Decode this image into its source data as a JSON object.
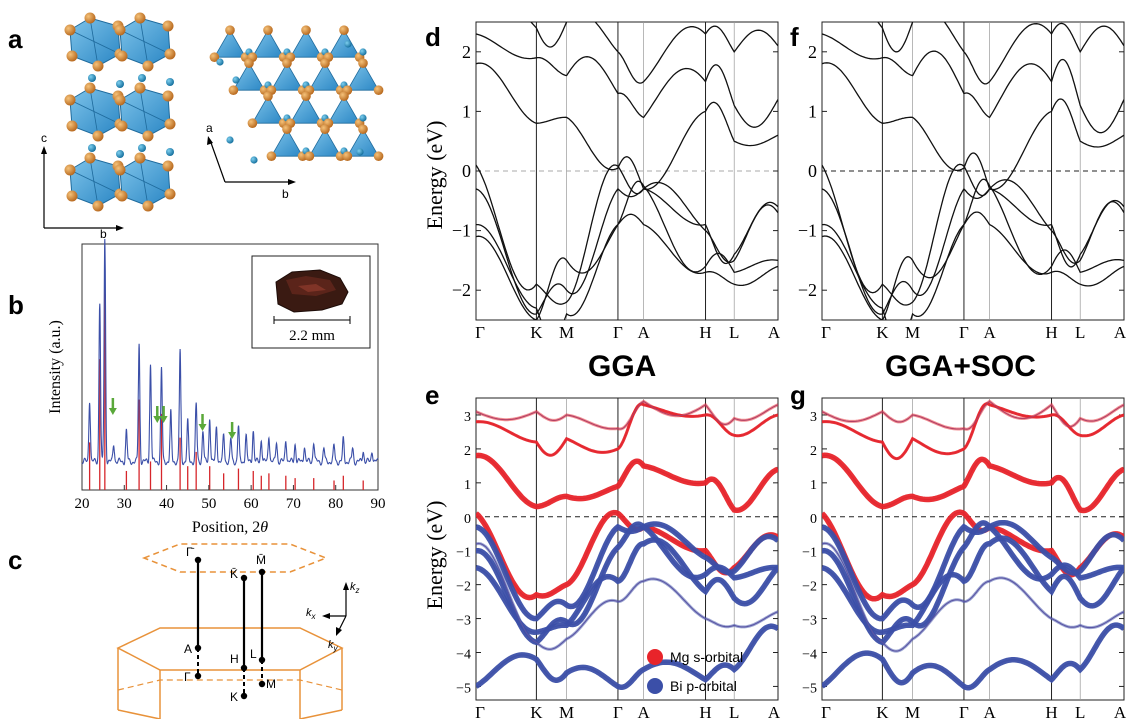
{
  "panels": {
    "a": {
      "letter": "a",
      "axis_c": "c",
      "axis_b": "b",
      "axis_a": "a",
      "axis_b2": "b"
    },
    "b": {
      "letter": "b",
      "ylabel": "Intensity (a.u.)",
      "xlabel": "Position, 2",
      "xlabel_theta": "θ",
      "inset_scale": "2.2 mm",
      "xticks": [
        "20",
        "30",
        "40",
        "50",
        "60",
        "70",
        "80",
        "90"
      ]
    },
    "c": {
      "letter": "c",
      "points": {
        "gamma_bar": "Γ̄",
        "k_bar": "K̄",
        "m_bar": "M̄",
        "A": "A",
        "H": "H",
        "L": "L",
        "Gamma": "Γ",
        "K": "K",
        "M": "M"
      },
      "axes": {
        "kz": "k",
        "kz_sub": "z",
        "kx": "k",
        "kx_sub": "x",
        "ky": "k",
        "ky_sub": "y"
      }
    },
    "d": {
      "letter": "d"
    },
    "e": {
      "letter": "e"
    },
    "f": {
      "letter": "f"
    },
    "g": {
      "letter": "g"
    }
  },
  "column_titles": {
    "left": "GGA",
    "right": "GGA+SOC"
  },
  "band_ylabel": "Energy (eV)",
  "kpath": [
    "Γ",
    "K",
    "M",
    "Γ",
    "A",
    "H",
    "L",
    "A"
  ],
  "legend": [
    {
      "label": "Mg s-orbital",
      "color": "#e8242a"
    },
    {
      "label": "Bi p-orbital",
      "color": "#3b4fa8"
    }
  ],
  "chart_data": [
    {
      "id": "b",
      "type": "line",
      "title": "",
      "xlabel": "Position, 2θ",
      "ylabel": "Intensity (a.u.)",
      "xlim": [
        20,
        90
      ],
      "grid": false,
      "series": [
        {
          "name": "",
          "color": "#3b4fa8",
          "peaks": [
            [
              21.8,
              0.28
            ],
            [
              24.2,
              0.72
            ],
            [
              25.4,
              1.0
            ],
            [
              27.5,
              0.08
            ],
            [
              30.5,
              0.14
            ],
            [
              33.5,
              0.53
            ],
            [
              36.2,
              0.44
            ],
            [
              38.8,
              0.42
            ],
            [
              41.0,
              0.22
            ],
            [
              43.2,
              0.5
            ],
            [
              45.0,
              0.18
            ],
            [
              47.0,
              0.26
            ],
            [
              48.6,
              0.14
            ],
            [
              50.2,
              0.2
            ],
            [
              51.8,
              0.16
            ],
            [
              53.5,
              0.12
            ],
            [
              55.2,
              0.1
            ],
            [
              57.0,
              0.16
            ],
            [
              58.8,
              0.12
            ],
            [
              60.5,
              0.14
            ],
            [
              62.4,
              0.1
            ],
            [
              64.2,
              0.12
            ],
            [
              66.0,
              0.09
            ],
            [
              68.2,
              0.1
            ],
            [
              70.4,
              0.08
            ],
            [
              72.6,
              0.07
            ],
            [
              74.8,
              0.09
            ],
            [
              77.2,
              0.06
            ],
            [
              79.6,
              0.07
            ],
            [
              81.8,
              0.1
            ],
            [
              84.0,
              0.06
            ],
            [
              86.5,
              0.05
            ],
            [
              88.6,
              0.05
            ]
          ]
        },
        {
          "name": "",
          "color": "#d6262b",
          "peaks": [
            [
              21.8,
              0.2
            ],
            [
              24.2,
              0.55
            ],
            [
              25.4,
              0.98
            ],
            [
              30.5,
              0.08
            ],
            [
              33.5,
              0.38
            ],
            [
              36.2,
              0.12
            ],
            [
              38.8,
              0.32
            ],
            [
              43.2,
              0.22
            ],
            [
              45.0,
              0.1
            ],
            [
              47.0,
              0.16
            ],
            [
              50.2,
              0.1
            ],
            [
              53.5,
              0.07
            ],
            [
              57.0,
              0.09
            ],
            [
              60.5,
              0.08
            ],
            [
              62.4,
              0.06
            ],
            [
              64.2,
              0.07
            ],
            [
              68.2,
              0.06
            ],
            [
              70.4,
              0.05
            ],
            [
              74.8,
              0.05
            ],
            [
              79.6,
              0.04
            ],
            [
              81.8,
              0.06
            ],
            [
              86.5,
              0.04
            ]
          ]
        }
      ],
      "annotations": {
        "arrows_at": [
          27.3,
          37.8,
          39.3,
          48.5,
          55.5
        ]
      }
    },
    {
      "id": "d",
      "type": "line",
      "title": "",
      "ylabel": "Energy (eV)",
      "ylim": [
        -2.5,
        2.5
      ],
      "yticks": [
        -2,
        -1,
        0,
        1,
        2
      ],
      "xticks": [
        "Γ",
        "K",
        "M",
        "Γ",
        "A",
        "H",
        "L",
        "A"
      ]
    },
    {
      "id": "f",
      "type": "line",
      "title": "",
      "ylabel": "",
      "ylim": [
        -2.5,
        2.5
      ],
      "yticks": [
        -2,
        -1,
        0,
        1,
        2
      ],
      "xticks": [
        "Γ",
        "K",
        "M",
        "Γ",
        "A",
        "H",
        "L",
        "A"
      ]
    },
    {
      "id": "e",
      "type": "line",
      "title": "GGA",
      "ylabel": "Energy (eV)",
      "ylim": [
        -5.4,
        3.5
      ],
      "yticks": [
        -5,
        -4,
        -3,
        -2,
        -1,
        0,
        1,
        2,
        3
      ],
      "xticks": [
        "Γ",
        "K",
        "M",
        "Γ",
        "A",
        "H",
        "L",
        "A"
      ]
    },
    {
      "id": "g",
      "type": "line",
      "title": "GGA+SOC",
      "ylabel": "",
      "ylim": [
        -5.4,
        3.5
      ],
      "yticks": [
        -5,
        -4,
        -3,
        -2,
        -1,
        0,
        1,
        2,
        3
      ],
      "xticks": [
        "Γ",
        "K",
        "M",
        "Γ",
        "A",
        "H",
        "L",
        "A"
      ]
    }
  ]
}
